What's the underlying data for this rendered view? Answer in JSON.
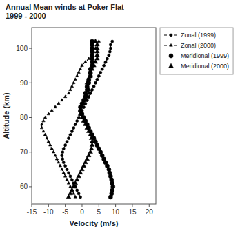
{
  "chart_data": {
    "type": "line",
    "title": "Annual Mean winds at Poker Flat\n1999 - 2000",
    "x_label": "Velocity (m/s)",
    "y_label": "Altitude (km)",
    "xlim": [
      -15,
      22
    ],
    "ylim": [
      55,
      106
    ],
    "xticks": [
      -15,
      -10,
      -5,
      0,
      5,
      10,
      15,
      20
    ],
    "yticks": [
      60,
      70,
      80,
      90,
      100
    ],
    "grid": false,
    "legend": "right",
    "series": [
      {
        "name": "Zonal (1999)",
        "type": "line",
        "color": "black",
        "marker": "circle",
        "line_style": "dashed",
        "x": [
          -0.5,
          -1.0,
          -1.5,
          -2.0,
          -2.5,
          -3.0,
          -3.5,
          -4.0,
          -4.5,
          -5.0,
          -5.5,
          -5.8,
          -6.0,
          -5.8,
          -5.5,
          -5.0,
          -4.5,
          -4.0,
          -3.5,
          -3.0,
          -2.5,
          -2.0,
          -1.5,
          -1.0,
          -0.5,
          0.0,
          0.5,
          1.0,
          1.5,
          2.0,
          2.5,
          3.0,
          3.5,
          4.0,
          4.5,
          5.0,
          5.5,
          6.0,
          6.5,
          7.0,
          7.5,
          8.0,
          8.3,
          8.5,
          8.5,
          9.0
        ],
        "values": [
          57,
          58,
          59,
          60,
          61,
          62,
          63,
          64,
          65,
          66,
          67,
          68,
          69,
          70,
          71,
          72,
          73,
          74,
          75,
          76,
          77,
          78,
          79,
          80,
          81,
          82,
          83,
          84,
          85,
          86,
          87,
          88,
          89,
          90,
          91,
          92,
          93,
          94,
          95,
          96,
          97,
          98,
          99,
          100,
          101,
          102
        ]
      },
      {
        "name": "Zonal (2000)",
        "type": "line",
        "color": "black",
        "marker": "triangle",
        "line_style": "dashed",
        "x": [
          -2.0,
          -2.5,
          -3.0,
          -3.5,
          -4.0,
          -4.5,
          -5.0,
          -5.5,
          -6.0,
          -6.5,
          -7.0,
          -7.5,
          -8.0,
          -8.5,
          -9.0,
          -9.5,
          -10.0,
          -10.5,
          -11.0,
          -11.5,
          -12.0,
          -12.0,
          -11.5,
          -11.0,
          -10.0,
          -9.0,
          -8.0,
          -7.0,
          -6.0,
          -5.0,
          -4.0,
          -3.5,
          -3.0,
          -2.5,
          -2.0,
          -1.5,
          -1.0,
          -0.5,
          0.0,
          1.0,
          2.0,
          3.0,
          3.5,
          4.0,
          4.5,
          5.0
        ],
        "values": [
          57,
          58,
          59,
          60,
          61,
          62,
          63,
          64,
          65,
          66,
          67,
          68,
          69,
          70,
          71,
          72,
          73,
          74,
          75,
          76,
          77,
          78,
          79,
          80,
          81,
          82,
          83,
          84,
          85,
          86,
          87,
          88,
          89,
          90,
          91,
          92,
          93,
          94,
          95,
          96,
          97,
          98,
          99,
          100,
          101,
          102
        ]
      },
      {
        "name": "Meridional (1999)",
        "type": "scatter",
        "color": "black",
        "marker": "circle",
        "x": [
          8.5,
          8.8,
          9.0,
          9.2,
          9.0,
          8.8,
          8.5,
          8.2,
          8.0,
          7.5,
          7.0,
          6.5,
          6.0,
          5.5,
          5.0,
          4.5,
          4.0,
          3.5,
          3.0,
          2.5,
          2.0,
          1.5,
          1.0,
          0.5,
          0.0,
          -0.5,
          -0.5,
          0.0,
          0.5,
          1.0,
          1.0,
          1.5,
          1.5,
          2.0,
          2.0,
          2.5,
          2.5,
          2.5,
          3.0,
          3.0,
          3.0,
          3.0,
          3.0,
          3.0,
          3.0,
          3.0
        ],
        "values": [
          57,
          58,
          59,
          60,
          61,
          62,
          63,
          64,
          65,
          66,
          67,
          68,
          69,
          70,
          71,
          72,
          73,
          74,
          75,
          76,
          77,
          78,
          79,
          80,
          81,
          82,
          83,
          84,
          85,
          86,
          87,
          88,
          89,
          90,
          91,
          92,
          93,
          94,
          95,
          96,
          97,
          98,
          99,
          100,
          101,
          102
        ]
      },
      {
        "name": "Meridional (2000)",
        "type": "scatter",
        "color": "black",
        "marker": "triangle",
        "x": [
          -4.0,
          -3.5,
          -3.0,
          -2.5,
          -2.0,
          -1.5,
          -1.0,
          -0.5,
          0.0,
          0.5,
          1.0,
          1.5,
          2.0,
          2.5,
          2.8,
          3.0,
          3.0,
          2.8,
          2.5,
          2.0,
          1.5,
          1.0,
          0.5,
          0.0,
          -0.5,
          -0.5,
          0.0,
          0.5,
          1.0,
          1.5,
          2.0,
          2.0,
          1.5,
          1.5,
          2.0,
          2.5,
          2.5,
          3.0,
          3.5,
          4.0,
          4.5,
          4.5,
          4.5,
          4.5,
          4.5,
          4.0
        ],
        "values": [
          57,
          58,
          59,
          60,
          61,
          62,
          63,
          64,
          65,
          66,
          67,
          68,
          69,
          70,
          71,
          72,
          73,
          74,
          75,
          76,
          77,
          78,
          79,
          80,
          81,
          82,
          83,
          84,
          85,
          86,
          87,
          88,
          89,
          90,
          91,
          92,
          93,
          94,
          95,
          96,
          97,
          98,
          99,
          100,
          101,
          102
        ]
      }
    ]
  }
}
